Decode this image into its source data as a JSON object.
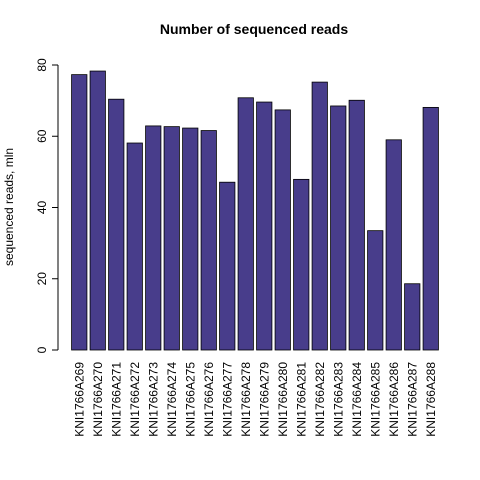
{
  "chart_data": {
    "type": "bar",
    "title": "Number of sequenced reads",
    "xlabel": "",
    "ylabel": "sequenced reads, mln",
    "ylim": [
      0,
      80
    ],
    "yticks": [
      0,
      20,
      40,
      60,
      80
    ],
    "grid": false,
    "bar_color": "#483D8B",
    "categories": [
      "KNI1766A269",
      "KNI1766A270",
      "KNI1766A271",
      "KNI1766A272",
      "KNI1766A273",
      "KNI1766A274",
      "KNI1766A275",
      "KNI1766A276",
      "KNI1766A277",
      "KNI1766A278",
      "KNI1766A279",
      "KNI1766A280",
      "KNI1766A281",
      "KNI1766A282",
      "KNI1766A283",
      "KNI1766A284",
      "KNI1766A285",
      "KNI1766A286",
      "KNI1766A287",
      "KNI1766A288"
    ],
    "values": [
      77.3,
      78.3,
      70.4,
      58.1,
      62.9,
      62.7,
      62.3,
      61.6,
      47.1,
      70.8,
      69.6,
      67.4,
      47.9,
      75.2,
      68.5,
      70.1,
      33.5,
      59.0,
      18.6,
      68.1
    ]
  }
}
